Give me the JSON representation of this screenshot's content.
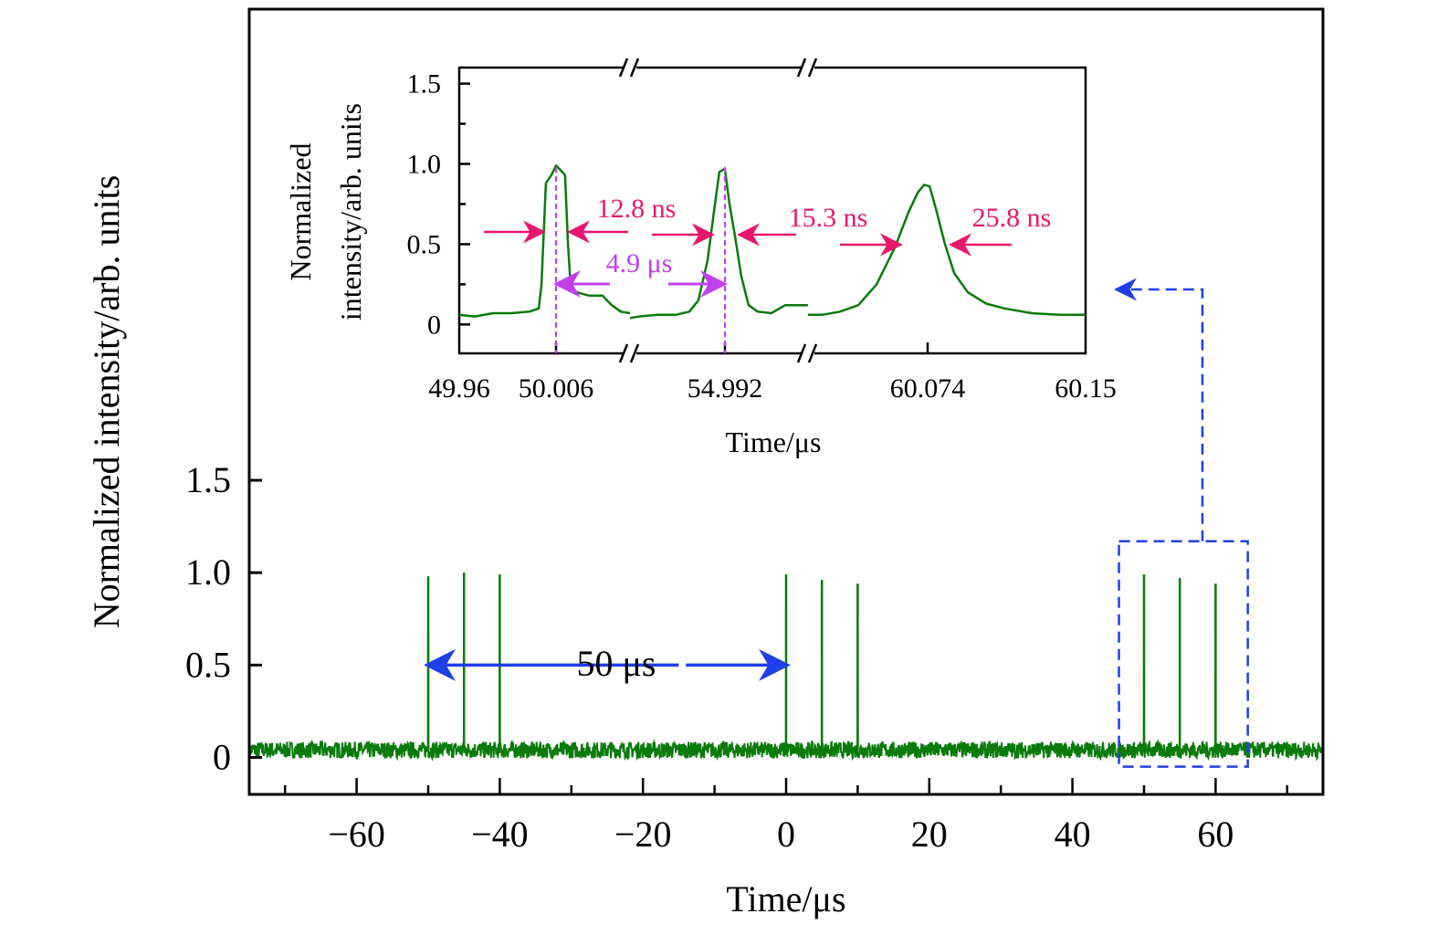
{
  "chart_data": [
    {
      "type": "line",
      "xlabel": "Time/μs",
      "ylabel": "Normalized intensity/arb. units",
      "xlim": [
        -75,
        75
      ],
      "ylim": [
        -0.2,
        4.05
      ],
      "xticks": [
        -60,
        -40,
        -20,
        0,
        20,
        40,
        60
      ],
      "xtick_labels": [
        "−60",
        "−40",
        "−20",
        "0",
        "20",
        "40",
        "60"
      ],
      "yticks": [
        0,
        0.5,
        1.0,
        1.5
      ],
      "ytick_labels": [
        "0",
        "0.5",
        "1.0",
        "1.5"
      ],
      "grid": false,
      "line_color": "#0a7a0a",
      "baseline_level": 0.04,
      "peaks": [
        {
          "x": -50,
          "y": 0.98
        },
        {
          "x": -45,
          "y": 1.0
        },
        {
          "x": -40,
          "y": 0.99
        },
        {
          "x": 0,
          "y": 0.99
        },
        {
          "x": 5,
          "y": 0.96
        },
        {
          "x": 10,
          "y": 0.94
        },
        {
          "x": 50,
          "y": 0.99
        },
        {
          "x": 55,
          "y": 0.97
        },
        {
          "x": 60,
          "y": 0.94
        }
      ],
      "annotations": [
        {
          "text": "50 μs",
          "from": -50,
          "to": 0,
          "y": 0.5,
          "color": "#1f3fe8"
        }
      ],
      "zoom_box": {
        "x": [
          46.5,
          64.5
        ],
        "y": [
          -0.05,
          1.17
        ],
        "color": "#1f3fe8"
      }
    },
    {
      "type": "line",
      "xlabel": "Time/μs",
      "ylabel": "Normalized intensity/arb. units",
      "ylabel_lines": [
        "Normalized",
        "intensity/arb. units"
      ],
      "ylim": [
        -0.18,
        1.6
      ],
      "xticks": [
        49.96,
        50.006,
        54.992,
        60.074,
        60.15
      ],
      "xtick_labels": [
        "49.96",
        "50.006",
        "54.992",
        "60.074",
        "60.15"
      ],
      "yticks": [
        0,
        0.5,
        1.0,
        1.5
      ],
      "ytick_labels": [
        "0",
        "0.5",
        "1.0",
        "1.5"
      ],
      "broken_axis": true,
      "segments": [
        {
          "xlim": [
            49.96,
            50.0412
          ],
          "points": [
            [
              49.96,
              0.06
            ],
            [
              49.9674,
              0.05
            ],
            [
              49.9761,
              0.07
            ],
            [
              49.9847,
              0.07
            ],
            [
              49.9934,
              0.08
            ],
            [
              49.9978,
              0.1
            ],
            [
              49.9991,
              0.25
            ],
            [
              50.0012,
              0.88
            ],
            [
              50.0038,
              0.93
            ],
            [
              50.006,
              0.99
            ],
            [
              50.0082,
              0.96
            ],
            [
              50.0103,
              0.93
            ],
            [
              50.0117,
              0.5
            ],
            [
              50.013,
              0.23
            ],
            [
              50.016,
              0.2
            ],
            [
              50.0216,
              0.18
            ],
            [
              50.0281,
              0.18
            ],
            [
              50.0325,
              0.12
            ],
            [
              50.0368,
              0.08
            ],
            [
              50.0412,
              0.07
            ]
          ]
        },
        {
          "xlim": [
            54.9469,
            55.0315
          ],
          "points": [
            [
              54.9469,
              0.04
            ],
            [
              54.9512,
              0.05
            ],
            [
              54.9599,
              0.06
            ],
            [
              54.9686,
              0.06
            ],
            [
              54.9751,
              0.08
            ],
            [
              54.9794,
              0.15
            ],
            [
              54.9838,
              0.4
            ],
            [
              54.9868,
              0.7
            ],
            [
              54.9894,
              0.95
            ],
            [
              54.992,
              0.97
            ],
            [
              54.9942,
              0.75
            ],
            [
              54.9968,
              0.55
            ],
            [
              54.9998,
              0.3
            ],
            [
              55.0033,
              0.12
            ],
            [
              55.0076,
              0.08
            ],
            [
              55.0141,
              0.07
            ],
            [
              55.0207,
              0.12
            ],
            [
              55.0315,
              0.12
            ]
          ]
        },
        {
          "xlim": [
            60.0171,
            60.1491
          ],
          "points": [
            [
              60.0171,
              0.06
            ],
            [
              60.0237,
              0.06
            ],
            [
              60.0323,
              0.08
            ],
            [
              60.041,
              0.12
            ],
            [
              60.0497,
              0.25
            ],
            [
              60.0584,
              0.48
            ],
            [
              60.0649,
              0.7
            ],
            [
              60.0692,
              0.82
            ],
            [
              60.0723,
              0.87
            ],
            [
              60.0749,
              0.86
            ],
            [
              60.0779,
              0.72
            ],
            [
              60.0822,
              0.5
            ],
            [
              60.0866,
              0.32
            ],
            [
              60.0931,
              0.2
            ],
            [
              60.1018,
              0.13
            ],
            [
              60.1105,
              0.1
            ],
            [
              60.1235,
              0.07
            ],
            [
              60.1366,
              0.06
            ],
            [
              60.1491,
              0.06
            ]
          ]
        }
      ],
      "annotations": [
        {
          "text": "12.8 ns",
          "color": "#e8166e"
        },
        {
          "text": "15.3 ns",
          "color": "#e8166e"
        },
        {
          "text": "25.8 ns",
          "color": "#e8166e"
        },
        {
          "text": "4.9 μs",
          "color": "#c040ee"
        }
      ]
    }
  ]
}
